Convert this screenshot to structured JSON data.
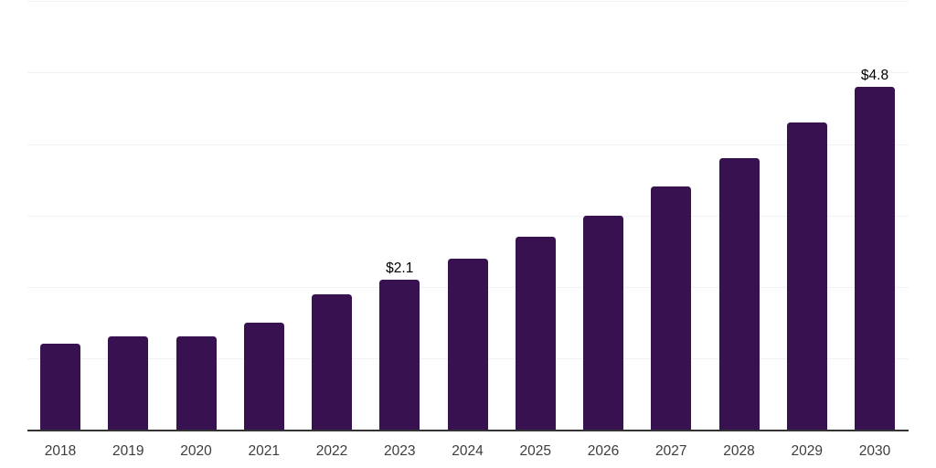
{
  "chart_data": {
    "type": "bar",
    "title": "",
    "xlabel": "",
    "ylabel": "",
    "categories": [
      "2018",
      "2019",
      "2020",
      "2021",
      "2022",
      "2023",
      "2024",
      "2025",
      "2026",
      "2027",
      "2028",
      "2029",
      "2030"
    ],
    "values": [
      1.2,
      1.3,
      1.3,
      1.5,
      1.9,
      2.1,
      2.4,
      2.7,
      3.0,
      3.4,
      3.8,
      4.3,
      4.8
    ],
    "data_labels": [
      {
        "category": "2023",
        "text": "$2.1"
      },
      {
        "category": "2030",
        "text": "$4.8"
      }
    ],
    "ylim": [
      0,
      6
    ],
    "gridline_step": 1,
    "grid": true,
    "legend_position": "none",
    "colors": {
      "bar": "#371150",
      "data_label": "#000000",
      "tick_label": "#3d3d3d",
      "axis_line": "#333333",
      "gridline": "#f2f2f4",
      "background": "#ffffff"
    }
  }
}
